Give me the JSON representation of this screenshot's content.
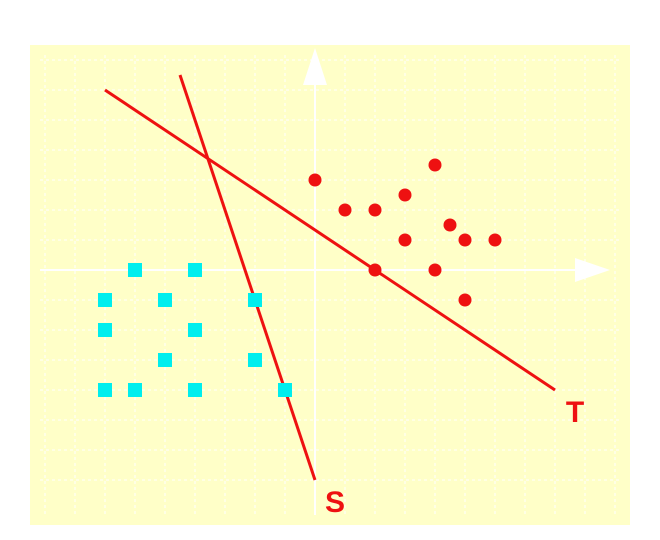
{
  "colors": {
    "panel": "#ffffc8",
    "grid": "#ffffff",
    "axis": "#ffffff",
    "red": "#ee1111",
    "cyan": "#00eeee"
  },
  "chart_data": {
    "type": "scatter",
    "xlim": [
      -9,
      10
    ],
    "ylim": [
      -7,
      7
    ],
    "grid": true,
    "series": [
      {
        "class": "red",
        "marker": "circle",
        "points": [
          [
            0,
            3
          ],
          [
            1,
            2
          ],
          [
            2,
            2
          ],
          [
            3,
            2.5
          ],
          [
            4,
            3.5
          ],
          [
            4.5,
            1.5
          ],
          [
            3,
            1
          ],
          [
            5,
            1
          ],
          [
            6,
            1
          ],
          [
            2,
            0
          ],
          [
            4,
            0
          ],
          [
            5,
            -1
          ]
        ]
      },
      {
        "class": "cyan",
        "marker": "square",
        "points": [
          [
            -6,
            0
          ],
          [
            -4,
            0
          ],
          [
            -7,
            -1
          ],
          [
            -5,
            -1
          ],
          [
            -2,
            -1
          ],
          [
            -7,
            -2
          ],
          [
            -4,
            -2
          ],
          [
            -5,
            -3
          ],
          [
            -2,
            -3
          ],
          [
            -7,
            -4
          ],
          [
            -6,
            -4
          ],
          [
            -4,
            -4
          ],
          [
            -1,
            -4
          ]
        ]
      }
    ],
    "lines": [
      {
        "label": "S",
        "from": [
          -4.5,
          6.5
        ],
        "to": [
          0,
          -7
        ]
      },
      {
        "label": "T",
        "from": [
          -7,
          6
        ],
        "to": [
          8,
          -4
        ]
      }
    ]
  }
}
